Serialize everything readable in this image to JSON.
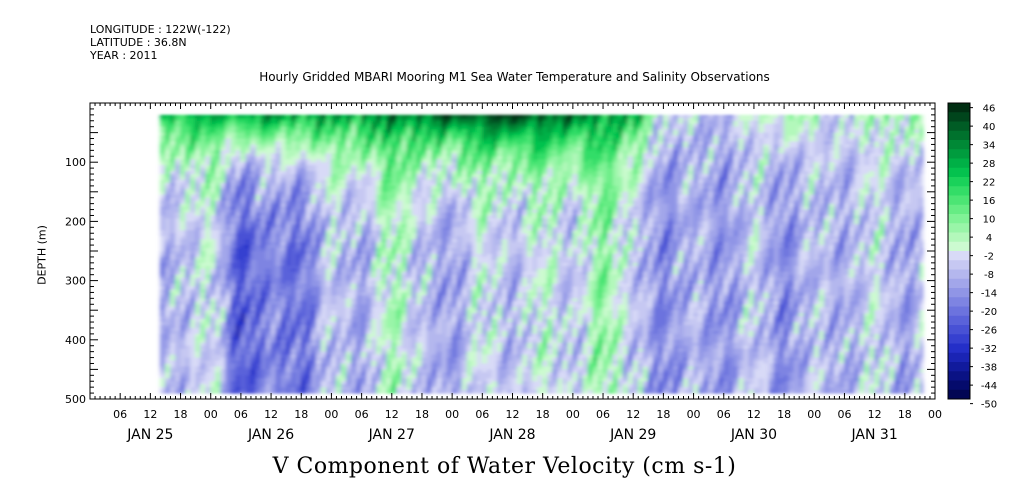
{
  "header": {
    "longitude": "LONGITUDE : 122W(-122)",
    "latitude": "LATITUDE : 36.8N",
    "year": "YEAR : 2011"
  },
  "chart_data": {
    "type": "heatmap",
    "title": "Hourly Gridded MBARI Mooring M1 Sea Water Temperature and Salinity Observations",
    "subtitle": "V Component of Water Velocity (cm s-1)",
    "ylabel": "DEPTH (m)",
    "xlabel": "",
    "x_range_hours": [
      0,
      168
    ],
    "ylim": [
      500,
      0
    ],
    "y_ticks": [
      100,
      200,
      300,
      400,
      500
    ],
    "x_hour_ticks": [
      "06",
      "12",
      "18",
      "00",
      "06",
      "12",
      "18",
      "00",
      "06",
      "12",
      "18",
      "00",
      "06",
      "12",
      "18",
      "00",
      "06",
      "12",
      "18",
      "00",
      "06",
      "12",
      "18",
      "00",
      "06",
      "12",
      "18",
      "00"
    ],
    "day_labels": [
      "JAN 25",
      "JAN 26",
      "JAN 27",
      "JAN 28",
      "JAN 29",
      "JAN 30",
      "JAN 31"
    ],
    "colorbar": {
      "labels": [
        "46",
        "40",
        "34",
        "28",
        "22",
        "16",
        "10",
        "4",
        "-2",
        "-8",
        "-14",
        "-20",
        "-26",
        "-32",
        "-38",
        "-44",
        "-50"
      ],
      "levels": [
        46,
        43,
        40,
        37,
        34,
        31,
        28,
        25,
        22,
        19,
        16,
        13,
        10,
        7,
        4,
        1,
        -2,
        -5,
        -8,
        -11,
        -14,
        -17,
        -20,
        -23,
        -26,
        -29,
        -32,
        -35,
        -38,
        -41,
        -44,
        -47,
        -50
      ],
      "colors": [
        "#002e12",
        "#00451c",
        "#005c25",
        "#00722d",
        "#008936",
        "#009c3e",
        "#00b046",
        "#04c24e",
        "#1ad25a",
        "#33dd67",
        "#4ce574",
        "#66ec84",
        "#80f296",
        "#99f5a8",
        "#b3f8bb",
        "#ccfad0",
        "#d8daf7",
        "#c6c8f2",
        "#b4b7ee",
        "#a2a6ea",
        "#9095e6",
        "#7e84e2",
        "#6c73de",
        "#5a62da",
        "#4851d5",
        "#3640d0",
        "#242fc8",
        "#1a24b4",
        "#111a9c",
        "#0a1284",
        "#050b6c",
        "#020654"
      ]
    },
    "data_region_note_days": [
      0.58,
      6.9
    ],
    "data_depth_range": [
      20,
      490
    ]
  }
}
